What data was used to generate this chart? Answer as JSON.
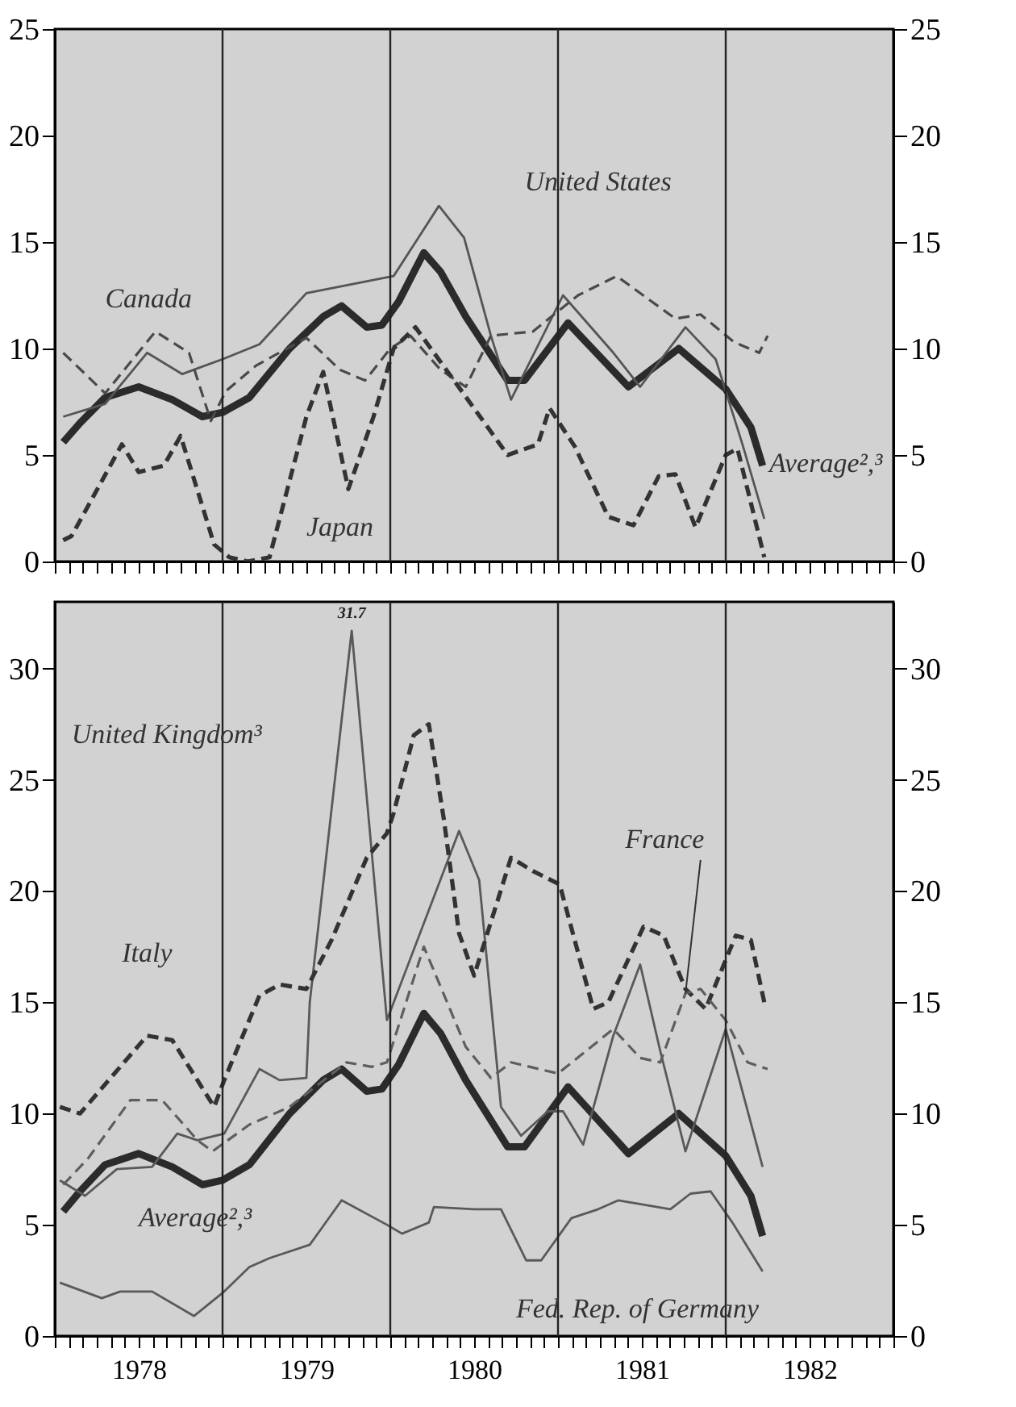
{
  "chart_data": [
    {
      "type": "line",
      "xlim": [
        1978,
        1983
      ],
      "ylim": [
        0,
        25
      ],
      "yticks": [
        0,
        5,
        10,
        15,
        20,
        25
      ],
      "y2lim": [
        0,
        25
      ],
      "y2ticks": [
        0,
        5,
        10,
        15,
        20,
        25
      ],
      "tick_labels": "y",
      "grid": false,
      "legend": false,
      "xticks": [
        {
          "value": 1978,
          "label": null
        },
        {
          "value": 1978.0833,
          "label": null
        },
        {
          "value": 1978.1667,
          "label": null
        },
        {
          "value": 1978.25,
          "label": null
        },
        {
          "value": 1978.3333,
          "label": null
        },
        {
          "value": 1978.4167,
          "label": null
        },
        {
          "value": 1978.5,
          "label": null
        },
        {
          "value": 1978.5833,
          "label": null
        },
        {
          "value": 1978.6667,
          "label": null
        },
        {
          "value": 1978.75,
          "label": null
        },
        {
          "value": 1978.8333,
          "label": null
        },
        {
          "value": 1978.9167,
          "label": null
        },
        {
          "value": 1979,
          "label": null
        },
        {
          "value": 1979.0833,
          "label": null
        },
        {
          "value": 1979.1667,
          "label": null
        },
        {
          "value": 1979.25,
          "label": null
        },
        {
          "value": 1979.3333,
          "label": null
        },
        {
          "value": 1979.4167,
          "label": null
        },
        {
          "value": 1979.5,
          "label": null
        },
        {
          "value": 1979.5833,
          "label": null
        },
        {
          "value": 1979.6667,
          "label": null
        },
        {
          "value": 1979.75,
          "label": null
        },
        {
          "value": 1979.8333,
          "label": null
        },
        {
          "value": 1979.9167,
          "label": null
        },
        {
          "value": 1980,
          "label": null
        },
        {
          "value": 1980.0833,
          "label": null
        },
        {
          "value": 1980.1667,
          "label": null
        },
        {
          "value": 1980.25,
          "label": null
        },
        {
          "value": 1980.3333,
          "label": null
        },
        {
          "value": 1980.4167,
          "label": null
        },
        {
          "value": 1980.5,
          "label": null
        },
        {
          "value": 1980.5833,
          "label": null
        },
        {
          "value": 1980.6667,
          "label": null
        },
        {
          "value": 1980.75,
          "label": null
        },
        {
          "value": 1980.8333,
          "label": null
        },
        {
          "value": 1980.9167,
          "label": null
        },
        {
          "value": 1981,
          "label": null
        },
        {
          "value": 1981.0833,
          "label": null
        },
        {
          "value": 1981.1667,
          "label": null
        },
        {
          "value": 1981.25,
          "label": null
        },
        {
          "value": 1981.3333,
          "label": null
        },
        {
          "value": 1981.4167,
          "label": null
        },
        {
          "value": 1981.5,
          "label": null
        },
        {
          "value": 1981.5833,
          "label": null
        },
        {
          "value": 1981.6667,
          "label": null
        },
        {
          "value": 1981.75,
          "label": null
        },
        {
          "value": 1981.8333,
          "label": null
        },
        {
          "value": 1981.9167,
          "label": null
        },
        {
          "value": 1982,
          "label": null
        },
        {
          "value": 1982.0833,
          "label": null
        },
        {
          "value": 1982.1667,
          "label": null
        },
        {
          "value": 1982.25,
          "label": null
        },
        {
          "value": 1982.3333,
          "label": null
        },
        {
          "value": 1982.4167,
          "label": null
        },
        {
          "value": 1982.5,
          "label": null
        },
        {
          "value": 1982.5833,
          "label": null
        },
        {
          "value": 1982.6667,
          "label": null
        },
        {
          "value": 1982.75,
          "label": null
        },
        {
          "value": 1982.8333,
          "label": null
        },
        {
          "value": 1982.9167,
          "label": null
        },
        {
          "value": 1983,
          "label": null
        }
      ],
      "ref_lines": [
        {
          "axis": "x",
          "value": 1979,
          "color": "#222222"
        },
        {
          "axis": "x",
          "value": 1980,
          "color": "#222222"
        },
        {
          "axis": "x",
          "value": 1981,
          "color": "#222222"
        },
        {
          "axis": "x",
          "value": 1982,
          "color": "#222222"
        }
      ],
      "series": [
        {
          "name": "Average²,³",
          "color": "#2b2b2b",
          "line_style": "solid",
          "x": [
            1978.05,
            1978.15,
            1978.3,
            1978.5,
            1978.7,
            1978.88,
            1979.0,
            1979.16,
            1979.4,
            1979.6,
            1979.71,
            1979.86,
            1979.95,
            1980.05,
            1980.2,
            1980.3,
            1980.45,
            1980.7,
            1980.8,
            1981.06,
            1981.42,
            1981.72,
            1982.0,
            1982.15,
            1982.22
          ],
          "values": [
            5.6,
            6.5,
            7.7,
            8.2,
            7.6,
            6.8,
            7.0,
            7.7,
            10.0,
            11.5,
            12.0,
            11.0,
            11.1,
            12.2,
            14.5,
            13.6,
            11.5,
            8.5,
            8.5,
            11.2,
            8.2,
            10.0,
            8.1,
            6.3,
            4.5
          ]
        },
        {
          "name": "United States",
          "color": "#555555",
          "line_style": "solid",
          "x": [
            1978.05,
            1978.3,
            1978.55,
            1978.76,
            1979.0,
            1979.22,
            1979.5,
            1980.02,
            1980.29,
            1980.44,
            1980.6,
            1980.72,
            1981.03,
            1981.33,
            1981.49,
            1981.76,
            1981.94,
            1982.04,
            1982.1,
            1982.23
          ],
          "values": [
            6.8,
            7.4,
            9.8,
            8.8,
            9.5,
            10.2,
            12.6,
            13.4,
            16.7,
            15.2,
            10.6,
            7.6,
            12.5,
            9.8,
            8.2,
            11.0,
            9.5,
            7.0,
            5.5,
            2.0
          ]
        },
        {
          "name": "Canada",
          "color": "#4a4a4a",
          "line_style": "dashed",
          "x": [
            1978.05,
            1978.3,
            1978.6,
            1978.8,
            1978.93,
            1979.02,
            1979.2,
            1979.5,
            1979.7,
            1979.85,
            1980.0,
            1980.12,
            1980.3,
            1980.45,
            1980.6,
            1980.85,
            1981.12,
            1981.35,
            1981.7,
            1981.85,
            1982.05,
            1982.2,
            1982.25
          ],
          "values": [
            9.8,
            7.9,
            10.8,
            9.8,
            6.6,
            8.0,
            9.2,
            10.5,
            9.0,
            8.5,
            10.0,
            10.6,
            9.0,
            8.2,
            10.6,
            10.8,
            12.5,
            13.4,
            11.4,
            11.6,
            10.3,
            9.8,
            10.6
          ]
        },
        {
          "name": "Japan",
          "color": "#333333",
          "line_style": "dashed",
          "x": [
            1978.05,
            1978.1,
            1978.4,
            1978.5,
            1978.65,
            1978.75,
            1978.95,
            1979.04,
            1979.15,
            1979.28,
            1979.5,
            1979.6,
            1979.75,
            1979.9,
            1980.02,
            1980.15,
            1980.38,
            1980.7,
            1980.88,
            1980.95,
            1981.1,
            1981.3,
            1981.45,
            1981.6,
            1981.7,
            1981.82,
            1982.0,
            1982.07,
            1982.23
          ],
          "values": [
            1.0,
            1.2,
            5.5,
            4.2,
            4.5,
            5.9,
            0.8,
            0.2,
            0,
            0.2,
            6.8,
            8.9,
            3.4,
            6.8,
            10.0,
            11.0,
            8.5,
            5.0,
            5.5,
            7.2,
            5.4,
            2.1,
            1.7,
            4.0,
            4.1,
            1.6,
            5.0,
            5.3,
            0.2
          ]
        }
      ]
    },
    {
      "type": "line",
      "xlim": [
        1978,
        1983
      ],
      "ylim": [
        0,
        33
      ],
      "yticks": [
        0,
        5,
        10,
        15,
        20,
        25,
        30
      ],
      "y2lim": [
        0,
        33
      ],
      "y2ticks": [
        0,
        5,
        10,
        15,
        20,
        25,
        30
      ],
      "grid": false,
      "legend": false,
      "xticks": [
        {
          "value": 1978,
          "label": null
        },
        {
          "value": 1978.0833,
          "label": null
        },
        {
          "value": 1978.1667,
          "label": null
        },
        {
          "value": 1978.25,
          "label": null
        },
        {
          "value": 1978.3333,
          "label": null
        },
        {
          "value": 1978.4167,
          "label": null
        },
        {
          "value": 1978.5,
          "label": "1978"
        },
        {
          "value": 1978.5833,
          "label": null
        },
        {
          "value": 1978.6667,
          "label": null
        },
        {
          "value": 1978.75,
          "label": null
        },
        {
          "value": 1978.8333,
          "label": null
        },
        {
          "value": 1978.9167,
          "label": null
        },
        {
          "value": 1979,
          "label": null
        },
        {
          "value": 1979.0833,
          "label": null
        },
        {
          "value": 1979.1667,
          "label": null
        },
        {
          "value": 1979.25,
          "label": null
        },
        {
          "value": 1979.3333,
          "label": null
        },
        {
          "value": 1979.4167,
          "label": null
        },
        {
          "value": 1979.5,
          "label": "1979"
        },
        {
          "value": 1979.5833,
          "label": null
        },
        {
          "value": 1979.6667,
          "label": null
        },
        {
          "value": 1979.75,
          "label": null
        },
        {
          "value": 1979.8333,
          "label": null
        },
        {
          "value": 1979.9167,
          "label": null
        },
        {
          "value": 1980,
          "label": null
        },
        {
          "value": 1980.0833,
          "label": null
        },
        {
          "value": 1980.1667,
          "label": null
        },
        {
          "value": 1980.25,
          "label": null
        },
        {
          "value": 1980.3333,
          "label": null
        },
        {
          "value": 1980.4167,
          "label": null
        },
        {
          "value": 1980.5,
          "label": "1980"
        },
        {
          "value": 1980.5833,
          "label": null
        },
        {
          "value": 1980.6667,
          "label": null
        },
        {
          "value": 1980.75,
          "label": null
        },
        {
          "value": 1980.8333,
          "label": null
        },
        {
          "value": 1980.9167,
          "label": null
        },
        {
          "value": 1981,
          "label": null
        },
        {
          "value": 1981.0833,
          "label": null
        },
        {
          "value": 1981.1667,
          "label": null
        },
        {
          "value": 1981.25,
          "label": null
        },
        {
          "value": 1981.3333,
          "label": null
        },
        {
          "value": 1981.4167,
          "label": null
        },
        {
          "value": 1981.5,
          "label": "1981"
        },
        {
          "value": 1981.5833,
          "label": null
        },
        {
          "value": 1981.6667,
          "label": null
        },
        {
          "value": 1981.75,
          "label": null
        },
        {
          "value": 1981.8333,
          "label": null
        },
        {
          "value": 1981.9167,
          "label": null
        },
        {
          "value": 1982,
          "label": null
        },
        {
          "value": 1982.0833,
          "label": null
        },
        {
          "value": 1982.1667,
          "label": null
        },
        {
          "value": 1982.25,
          "label": null
        },
        {
          "value": 1982.3333,
          "label": null
        },
        {
          "value": 1982.4167,
          "label": null
        },
        {
          "value": 1982.5,
          "label": "1982"
        },
        {
          "value": 1982.5833,
          "label": null
        },
        {
          "value": 1982.6667,
          "label": null
        },
        {
          "value": 1982.75,
          "label": null
        },
        {
          "value": 1982.8333,
          "label": null
        },
        {
          "value": 1982.9167,
          "label": null
        },
        {
          "value": 1983,
          "label": null
        }
      ],
      "ref_lines": [
        {
          "axis": "x",
          "value": 1979,
          "color": "#222222"
        },
        {
          "axis": "x",
          "value": 1980,
          "color": "#222222"
        },
        {
          "axis": "x",
          "value": 1981,
          "color": "#222222"
        },
        {
          "axis": "x",
          "value": 1982,
          "color": "#222222"
        }
      ],
      "annotations": [
        {
          "text": "31.7",
          "x": 1979.77,
          "y": 31.7
        }
      ],
      "series": [
        {
          "name": "Average²,³",
          "color": "#2b2b2b",
          "line_style": "solid",
          "x": [
            1978.05,
            1978.15,
            1978.3,
            1978.5,
            1978.7,
            1978.88,
            1979.0,
            1979.16,
            1979.4,
            1979.6,
            1979.71,
            1979.86,
            1979.95,
            1980.05,
            1980.2,
            1980.3,
            1980.45,
            1980.7,
            1980.8,
            1981.06,
            1981.42,
            1981.72,
            1982.0,
            1982.15,
            1982.22
          ],
          "values": [
            5.6,
            6.5,
            7.7,
            8.2,
            7.6,
            6.8,
            7.0,
            7.7,
            10.0,
            11.5,
            12.0,
            11.0,
            11.1,
            12.2,
            14.5,
            13.6,
            11.5,
            8.5,
            8.5,
            11.2,
            8.2,
            10.0,
            8.1,
            6.3,
            4.5
          ]
        },
        {
          "name": "United Kingdom³",
          "color": "#595959",
          "line_style": "solid",
          "x": [
            1978.03,
            1978.18,
            1978.37,
            1978.58,
            1978.73,
            1978.85,
            1979.01,
            1979.22,
            1979.34,
            1979.5,
            1979.52,
            1979.77,
            1979.98,
            1980.41,
            1980.53,
            1980.66,
            1980.78,
            1980.94,
            1981.03,
            1981.15,
            1981.33,
            1981.49,
            1981.61,
            1981.76,
            1982.0,
            1982.22
          ],
          "values": [
            7.0,
            6.3,
            7.5,
            7.6,
            9.1,
            8.8,
            9.1,
            12.0,
            11.5,
            11.6,
            15.0,
            31.7,
            14.2,
            22.7,
            20.5,
            10.3,
            9.0,
            10.1,
            10.1,
            8.6,
            13.5,
            16.7,
            12.8,
            8.3,
            13.8,
            7.6
          ]
        },
        {
          "name": "Italy",
          "color": "#333333",
          "line_style": "dashed",
          "x": [
            1978.03,
            1978.15,
            1978.55,
            1978.7,
            1978.95,
            1979.01,
            1979.22,
            1979.34,
            1979.5,
            1979.65,
            1979.86,
            1979.98,
            1980.02,
            1980.14,
            1980.23,
            1980.32,
            1980.41,
            1980.5,
            1980.72,
            1980.85,
            1981.01,
            1981.21,
            1981.3,
            1981.51,
            1981.63,
            1981.76,
            1981.88,
            1982.06,
            1982.15,
            1982.23
          ],
          "values": [
            10.3,
            10.0,
            13.5,
            13.3,
            10.3,
            11.5,
            15.3,
            15.8,
            15.6,
            17.8,
            21.5,
            22.6,
            23.5,
            27.0,
            27.5,
            23.2,
            18.1,
            16.2,
            21.5,
            20.9,
            20.3,
            14.7,
            15.0,
            18.4,
            18.0,
            15.6,
            14.7,
            18.0,
            17.8,
            15.0
          ]
        },
        {
          "name": "France",
          "color": "#5e5e5e",
          "line_style": "dashed",
          "x": [
            1978.05,
            1978.2,
            1978.45,
            1978.64,
            1978.85,
            1978.94,
            1979.16,
            1979.4,
            1979.74,
            1979.89,
            1979.98,
            1980.2,
            1980.45,
            1980.6,
            1980.72,
            1981.0,
            1981.33,
            1981.49,
            1981.61,
            1981.76,
            1981.85,
            1982.0,
            1982.13,
            1982.25
          ],
          "values": [
            6.8,
            8.0,
            10.6,
            10.6,
            8.8,
            8.3,
            9.5,
            10.3,
            12.3,
            12.1,
            12.3,
            17.5,
            13.0,
            11.6,
            12.3,
            11.8,
            13.8,
            12.5,
            12.3,
            15.4,
            15.6,
            14.2,
            12.3,
            12.0
          ]
        },
        {
          "name": "Fed. Rep. of Germany",
          "color": "#5a5a5a",
          "line_style": "solid",
          "x": [
            1978.03,
            1978.28,
            1978.39,
            1978.58,
            1978.83,
            1979.01,
            1979.16,
            1979.28,
            1979.52,
            1979.71,
            1979.98,
            1980.07,
            1980.23,
            1980.26,
            1980.5,
            1980.66,
            1980.81,
            1980.9,
            1981.08,
            1981.24,
            1981.36,
            1981.67,
            1981.79,
            1981.91,
            1982.04,
            1982.22
          ],
          "values": [
            2.4,
            1.7,
            2.0,
            2.0,
            0.9,
            2.0,
            3.1,
            3.5,
            4.1,
            6.1,
            5.0,
            4.6,
            5.1,
            5.8,
            5.7,
            5.7,
            3.4,
            3.4,
            5.3,
            5.7,
            6.1,
            5.7,
            6.4,
            6.5,
            5.1,
            2.9
          ]
        }
      ]
    }
  ]
}
